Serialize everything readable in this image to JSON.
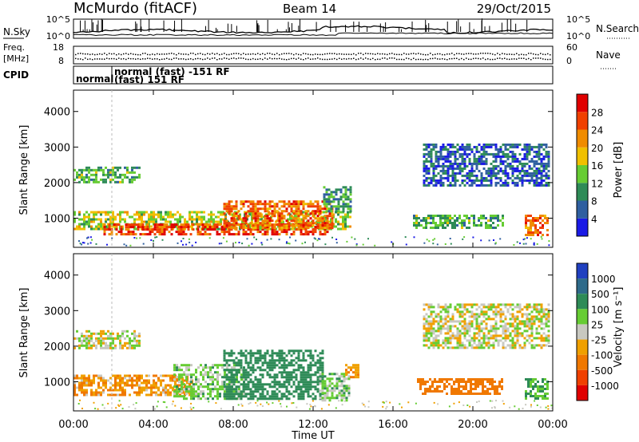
{
  "header": {
    "site": "McMurdo (fitACF)",
    "beam": "Beam 14",
    "date": "29/Oct/2015"
  },
  "noise_panel": {
    "left_label": "N.Sky",
    "right_label": "N.Search",
    "left_ticks": [
      "10^5",
      "10^0"
    ],
    "right_ticks": [
      "10^5",
      "10^0"
    ]
  },
  "freq_panel": {
    "left_label_1": "Freq.",
    "left_label_2": "[MHz]",
    "right_label": "Nave",
    "left_ticks": [
      "18",
      "8"
    ],
    "right_ticks": [
      "60",
      "0"
    ]
  },
  "cpid": {
    "label": "CPID",
    "entries": [
      "normal",
      "normal (fast) -151 RF",
      "(fast) 151 RF"
    ]
  },
  "axes": {
    "ylabel": "Slant Range [km]",
    "xlabel": "Time UT",
    "x_ticks": [
      "00:00",
      "04:00",
      "08:00",
      "12:00",
      "16:00",
      "20:00",
      "00:00"
    ],
    "y_ticks": [
      "1000",
      "2000",
      "3000",
      "4000"
    ]
  },
  "power_colorbar": {
    "title": "Power [dB]",
    "ticks": [
      "4",
      "8",
      "12",
      "16",
      "20",
      "24",
      "28"
    ],
    "colors": [
      "#1a1ae6",
      "#2f5fa0",
      "#2e8b57",
      "#66cc33",
      "#f0c000",
      "#f08c00",
      "#f04000",
      "#e00000"
    ]
  },
  "velocity_colorbar": {
    "title": "Velocity [m s⁻¹]",
    "ticks": [
      "1000",
      "500",
      "100",
      "25",
      "-25",
      "-100",
      "-500",
      "-1000"
    ],
    "colors": [
      "#2040c0",
      "#2e6a8a",
      "#2e8b57",
      "#66cc33",
      "#c8c8c0",
      "#f0a000",
      "#f07800",
      "#f04000",
      "#e00000"
    ]
  },
  "chart_data": [
    {
      "type": "heatmap",
      "title": "Power [dB]",
      "xlabel": "Time UT",
      "ylabel": "Slant Range [km]",
      "xlim": [
        0,
        24
      ],
      "ylim": [
        180,
        4600
      ],
      "bands": [
        {
          "t0": 0.0,
          "t1": 3.3,
          "r0": 2000,
          "r1": 2450,
          "value": 12
        },
        {
          "t0": 0.0,
          "t1": 13.9,
          "r0": 700,
          "r1": 1200,
          "value": 16
        },
        {
          "t0": 1.5,
          "t1": 13.0,
          "r0": 550,
          "r1": 850,
          "value": 26
        },
        {
          "t0": 7.5,
          "t1": 13.0,
          "r0": 700,
          "r1": 1500,
          "value": 24
        },
        {
          "t0": 12.5,
          "t1": 13.9,
          "r0": 1200,
          "r1": 1900,
          "value": 10
        },
        {
          "t0": 17.0,
          "t1": 21.5,
          "r0": 700,
          "r1": 1100,
          "value": 12
        },
        {
          "t0": 17.5,
          "t1": 23.8,
          "r0": 1900,
          "r1": 3100,
          "value": 6
        },
        {
          "t0": 22.6,
          "t1": 23.8,
          "r0": 550,
          "r1": 1100,
          "value": 24
        }
      ]
    },
    {
      "type": "heatmap",
      "title": "Velocity [m s⁻¹]",
      "xlabel": "Time UT",
      "ylabel": "Slant Range [km]",
      "xlim": [
        0,
        24
      ],
      "ylim": [
        180,
        4600
      ],
      "bands": [
        {
          "t0": 0.0,
          "t1": 3.3,
          "r0": 1950,
          "r1": 2450,
          "value": 0
        },
        {
          "t0": 0.0,
          "t1": 6.0,
          "r0": 600,
          "r1": 1200,
          "value": -80
        },
        {
          "t0": 5.0,
          "t1": 8.5,
          "r0": 550,
          "r1": 1500,
          "value": 50
        },
        {
          "t0": 7.5,
          "t1": 12.5,
          "r0": 500,
          "r1": 1900,
          "value": 300
        },
        {
          "t0": 12.3,
          "t1": 13.8,
          "r0": 500,
          "r1": 1250,
          "value": 50
        },
        {
          "t0": 13.6,
          "t1": 14.3,
          "r0": 1100,
          "r1": 1500,
          "value": -100
        },
        {
          "t0": 17.2,
          "t1": 21.5,
          "r0": 650,
          "r1": 1100,
          "value": -300
        },
        {
          "t0": 17.5,
          "t1": 23.8,
          "r0": 1950,
          "r1": 3200,
          "value": 0
        },
        {
          "t0": 22.6,
          "t1": 23.8,
          "r0": 550,
          "r1": 1100,
          "value": 100
        }
      ]
    }
  ]
}
